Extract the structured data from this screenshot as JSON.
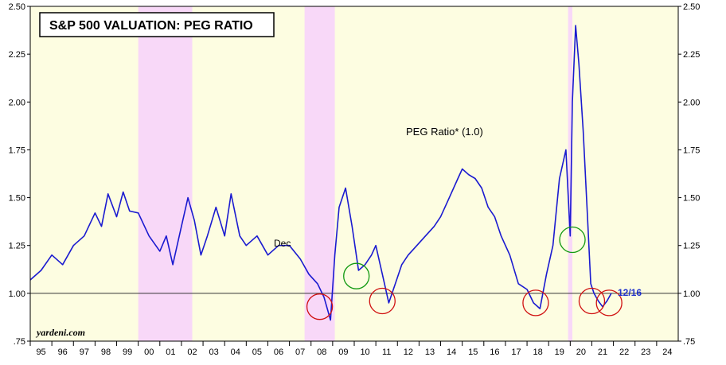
{
  "chart_data": {
    "type": "line",
    "title": "S&P 500 VALUATION: PEG RATIO",
    "series_label": "PEG Ratio* (1.0)",
    "latest_label": "12/16",
    "dec_label": "Dec",
    "source": "yardeni.com",
    "ylim": [
      0.75,
      2.5
    ],
    "y_ticks": [
      "2.50",
      "2.25",
      "2.00",
      "1.75",
      "1.50",
      "1.25",
      "1.00",
      ".75"
    ],
    "y_tick_values": [
      2.5,
      2.25,
      2.0,
      1.75,
      1.5,
      1.25,
      1.0,
      0.75
    ],
    "x_ticks": [
      "95",
      "96",
      "97",
      "98",
      "99",
      "00",
      "01",
      "02",
      "03",
      "04",
      "05",
      "06",
      "07",
      "08",
      "09",
      "10",
      "11",
      "12",
      "13",
      "14",
      "15",
      "16",
      "17",
      "18",
      "19",
      "20",
      "21",
      "22",
      "23",
      "24"
    ],
    "xlim": [
      1995,
      2025
    ],
    "reference_line": 1.0,
    "recessions": [
      [
        2000.0,
        2002.5
      ],
      [
        2007.7,
        2009.1
      ],
      [
        2019.9,
        2020.1
      ]
    ],
    "x": [
      1995.0,
      1995.5,
      1996.0,
      1996.5,
      1997.0,
      1997.5,
      1998.0,
      1998.3,
      1998.6,
      1999.0,
      1999.3,
      1999.6,
      2000.0,
      2000.5,
      2001.0,
      2001.3,
      2001.6,
      2002.0,
      2002.3,
      2002.6,
      2002.9,
      2003.2,
      2003.6,
      2004.0,
      2004.3,
      2004.7,
      2005.0,
      2005.5,
      2006.0,
      2006.5,
      2007.0,
      2007.5,
      2007.9,
      2008.3,
      2008.6,
      2008.9,
      2009.1,
      2009.3,
      2009.6,
      2009.9,
      2010.2,
      2010.5,
      2010.8,
      2011.0,
      2011.3,
      2011.6,
      2011.9,
      2012.2,
      2012.5,
      2012.9,
      2013.3,
      2013.7,
      2014.0,
      2014.4,
      2014.8,
      2015.0,
      2015.3,
      2015.6,
      2015.9,
      2016.2,
      2016.5,
      2016.8,
      2017.2,
      2017.6,
      2018.0,
      2018.3,
      2018.6,
      2018.9,
      2019.2,
      2019.5,
      2019.8,
      2020.0,
      2020.1,
      2020.25,
      2020.4,
      2020.6,
      2020.8,
      2020.95,
      2021.1,
      2021.3,
      2021.5,
      2021.7,
      2021.9
    ],
    "y": [
      1.07,
      1.12,
      1.2,
      1.15,
      1.25,
      1.3,
      1.42,
      1.35,
      1.52,
      1.4,
      1.53,
      1.43,
      1.42,
      1.3,
      1.22,
      1.3,
      1.15,
      1.35,
      1.5,
      1.38,
      1.2,
      1.3,
      1.45,
      1.3,
      1.52,
      1.3,
      1.25,
      1.3,
      1.2,
      1.25,
      1.25,
      1.18,
      1.1,
      1.05,
      0.98,
      0.86,
      1.2,
      1.45,
      1.55,
      1.35,
      1.12,
      1.15,
      1.2,
      1.25,
      1.1,
      0.95,
      1.05,
      1.15,
      1.2,
      1.25,
      1.3,
      1.35,
      1.4,
      1.5,
      1.6,
      1.65,
      1.62,
      1.6,
      1.55,
      1.45,
      1.4,
      1.3,
      1.2,
      1.05,
      1.02,
      0.95,
      0.92,
      1.1,
      1.25,
      1.6,
      1.75,
      1.3,
      2.0,
      2.4,
      2.2,
      1.85,
      1.4,
      1.05,
      1.0,
      0.96,
      0.93,
      0.96,
      1.0
    ],
    "highlight_circles": [
      {
        "x": 2008.4,
        "y": 0.93,
        "color": "#d01010"
      },
      {
        "x": 2010.1,
        "y": 1.09,
        "color": "#119911"
      },
      {
        "x": 2011.3,
        "y": 0.96,
        "color": "#d01010"
      },
      {
        "x": 2018.4,
        "y": 0.95,
        "color": "#d01010"
      },
      {
        "x": 2020.1,
        "y": 1.28,
        "color": "#119911"
      },
      {
        "x": 2021.0,
        "y": 0.96,
        "color": "#d01010"
      },
      {
        "x": 2021.8,
        "y": 0.95,
        "color": "#d01010"
      }
    ],
    "colors": {
      "background": "#fdfde1",
      "recession": "#f8d8f8",
      "line": "#1a1ad0",
      "axis": "#000000"
    },
    "grid": false
  }
}
